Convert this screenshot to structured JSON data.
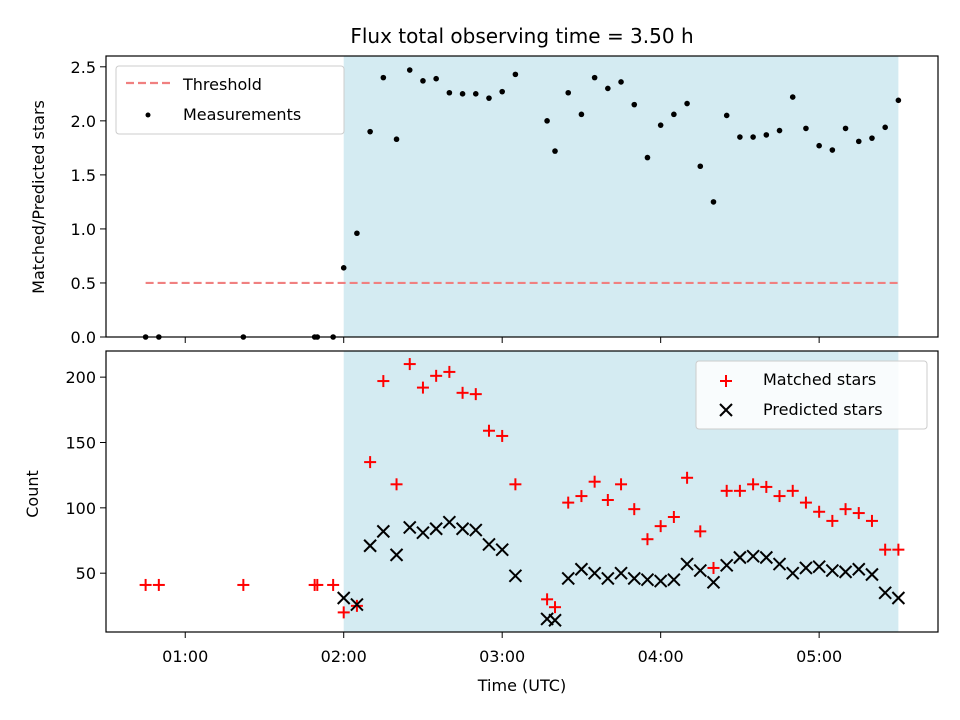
{
  "chart_data": [
    {
      "type": "scatter",
      "title": "Flux total observing time = 3.50 h",
      "ylabel": "Matched/Predicted stars",
      "xlim": [
        "00:30",
        "05:45"
      ],
      "ylim": [
        0,
        2.6
      ],
      "x_ticks": [
        "01:00",
        "02:00",
        "03:00",
        "04:00",
        "05:00"
      ],
      "y_ticks": [
        "0.0",
        "0.5",
        "1.0",
        "1.5",
        "2.0",
        "2.5"
      ],
      "shaded_span": [
        "02:00",
        "05:30"
      ],
      "shade_color": "#add8e6",
      "legend_position": "upper left",
      "threshold": {
        "name": "Threshold",
        "y": 0.5,
        "x_range": [
          "00:45",
          "05:30"
        ],
        "color": "#f08080",
        "style": "dashed"
      },
      "series": [
        {
          "name": "Measurements",
          "marker": "dot",
          "color": "#000000",
          "x": [
            "00:45",
            "00:50",
            "01:22",
            "01:49",
            "01:50",
            "01:56",
            "02:00",
            "02:05",
            "02:10",
            "02:15",
            "02:20",
            "02:25",
            "02:30",
            "02:35",
            "02:40",
            "02:45",
            "02:50",
            "02:55",
            "03:00",
            "03:05",
            "03:17",
            "03:20",
            "03:25",
            "03:30",
            "03:35",
            "03:40",
            "03:45",
            "03:50",
            "03:55",
            "04:00",
            "04:05",
            "04:10",
            "04:15",
            "04:20",
            "04:25",
            "04:30",
            "04:35",
            "04:40",
            "04:45",
            "04:50",
            "04:55",
            "05:00",
            "05:05",
            "05:10",
            "05:15",
            "05:20",
            "05:25",
            "05:30"
          ],
          "y": [
            0,
            0,
            0,
            0,
            0,
            0,
            0.64,
            0.96,
            1.9,
            2.4,
            1.83,
            2.47,
            2.37,
            2.39,
            2.26,
            2.25,
            2.25,
            2.21,
            2.27,
            2.43,
            2.0,
            1.72,
            2.26,
            2.06,
            2.4,
            2.3,
            2.36,
            2.15,
            1.66,
            1.96,
            2.06,
            2.16,
            1.58,
            1.25,
            2.05,
            1.85,
            1.85,
            1.87,
            1.91,
            2.22,
            1.93,
            1.77,
            1.73,
            1.93,
            1.81,
            1.84,
            1.94,
            2.19
          ]
        }
      ]
    },
    {
      "type": "scatter",
      "xlabel": "Time (UTC)",
      "ylabel": "Count",
      "xlim": [
        "00:30",
        "05:45"
      ],
      "ylim": [
        5,
        220
      ],
      "x_ticks": [
        "01:00",
        "02:00",
        "03:00",
        "04:00",
        "05:00"
      ],
      "y_ticks": [
        "50",
        "100",
        "150",
        "200"
      ],
      "shaded_span": [
        "02:00",
        "05:30"
      ],
      "shade_color": "#add8e6",
      "legend_position": "upper right",
      "series": [
        {
          "name": "Matched stars",
          "marker": "plus",
          "color": "#ff0000",
          "x": [
            "00:45",
            "00:50",
            "01:22",
            "01:49",
            "01:50",
            "01:56",
            "02:00",
            "02:05",
            "02:10",
            "02:15",
            "02:20",
            "02:25",
            "02:30",
            "02:35",
            "02:40",
            "02:45",
            "02:50",
            "02:55",
            "03:00",
            "03:05",
            "03:17",
            "03:20",
            "03:25",
            "03:30",
            "03:35",
            "03:40",
            "03:45",
            "03:50",
            "03:55",
            "04:00",
            "04:05",
            "04:10",
            "04:15",
            "04:20",
            "04:25",
            "04:30",
            "04:35",
            "04:40",
            "04:45",
            "04:50",
            "04:55",
            "05:00",
            "05:05",
            "05:10",
            "05:15",
            "05:20",
            "05:25",
            "05:30"
          ],
          "y": [
            41,
            41,
            41,
            41,
            41,
            41,
            20,
            25,
            135,
            197,
            118,
            210,
            192,
            201,
            204,
            188,
            187,
            159,
            155,
            118,
            30,
            24,
            104,
            109,
            120,
            106,
            118,
            99,
            76,
            86,
            93,
            123,
            82,
            54,
            113,
            113,
            118,
            116,
            109,
            113,
            104,
            97,
            90,
            99,
            96,
            90,
            68,
            68
          ]
        },
        {
          "name": "Predicted stars",
          "marker": "x",
          "color": "#000000",
          "x": [
            "02:00",
            "02:05",
            "02:10",
            "02:15",
            "02:20",
            "02:25",
            "02:30",
            "02:35",
            "02:40",
            "02:45",
            "02:50",
            "02:55",
            "03:00",
            "03:05",
            "03:17",
            "03:20",
            "03:25",
            "03:30",
            "03:35",
            "03:40",
            "03:45",
            "03:50",
            "03:55",
            "04:00",
            "04:05",
            "04:10",
            "04:15",
            "04:20",
            "04:25",
            "04:30",
            "04:35",
            "04:40",
            "04:45",
            "04:50",
            "04:55",
            "05:00",
            "05:05",
            "05:10",
            "05:15",
            "05:20",
            "05:25",
            "05:30"
          ],
          "y": [
            31,
            26,
            71,
            82,
            64,
            85,
            81,
            84,
            89,
            84,
            83,
            72,
            68,
            48,
            15,
            14,
            46,
            53,
            50,
            46,
            50,
            46,
            45,
            44,
            45,
            57,
            52,
            43,
            56,
            62,
            63,
            62,
            57,
            50,
            54,
            55,
            52,
            51,
            53,
            49,
            35,
            31
          ]
        }
      ]
    }
  ]
}
